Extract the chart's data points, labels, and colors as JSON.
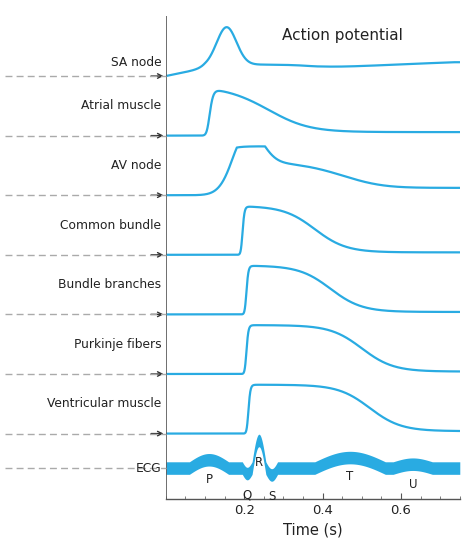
{
  "bg_color": "#ffffff",
  "line_color": "#29ABE2",
  "text_color": "#222222",
  "dashed_color": "#aaaaaa",
  "arrow_color": "#333333",
  "title": "Action potential",
  "xlabel": "Time (s)",
  "figsize": [
    4.74,
    5.48
  ],
  "dpi": 100,
  "xmin": 0.0,
  "xmax": 0.75,
  "labels": [
    "SA node",
    "Atrial muscle",
    "AV node",
    "Common bundle",
    "Bundle branches",
    "Purkinje fibers",
    "Ventricular muscle"
  ],
  "ecg_label": "ECG"
}
